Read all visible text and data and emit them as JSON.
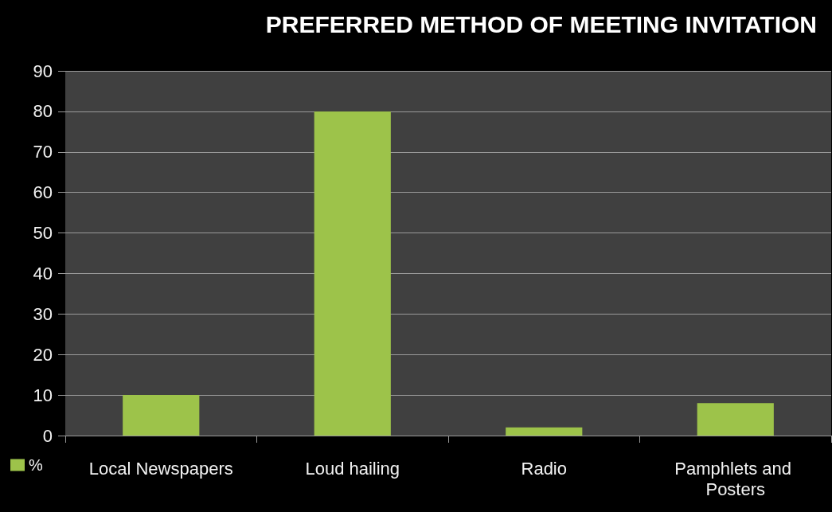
{
  "chart_data": {
    "type": "bar",
    "title": "PREFERRED METHOD OF MEETING INVITATION",
    "categories": [
      "Local Newspapers",
      "Loud hailing",
      "Radio",
      "Pamphlets and Posters"
    ],
    "series": [
      {
        "name": "%",
        "color": "#9dc34a",
        "values": [
          10,
          80,
          2,
          8
        ]
      }
    ],
    "ylim": [
      0,
      90
    ],
    "yticks": [
      0,
      10,
      20,
      30,
      40,
      50,
      60,
      70,
      80,
      90
    ],
    "grid": "y",
    "legend": "bottom left"
  }
}
